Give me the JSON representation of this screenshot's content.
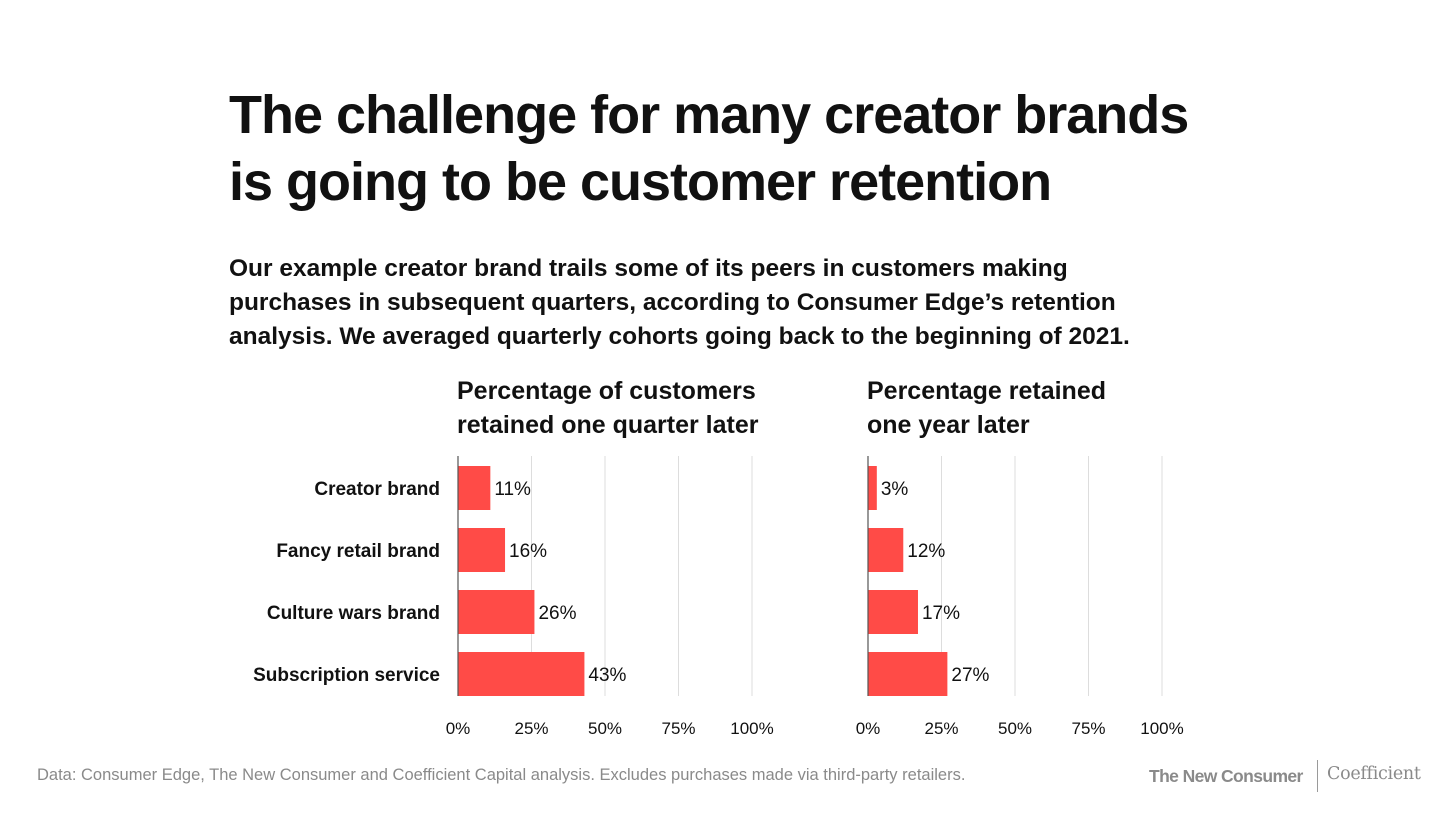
{
  "title_line1": "The challenge for many creator brands",
  "title_line2": "is going to be customer retention",
  "subtitle_line1": "Our example creator brand trails some of its peers in customers making",
  "subtitle_line2": "purchases in subsequent quarters, according to Consumer Edge’s retention",
  "subtitle_line3": "analysis. We averaged quarterly cohorts going back to the beginning of 2021.",
  "source": "Data: Consumer Edge, The New Consumer and Coefficient Capital analysis. Excludes purchases made via third-party retailers.",
  "logos": {
    "tnc": "The New Consumer",
    "coefficient": "Coefficient"
  },
  "colors": {
    "bar": "#ff4b47",
    "grid": "#dddddd",
    "axis": "#555555"
  },
  "chart_data": [
    {
      "type": "bar",
      "orientation": "horizontal",
      "title_line1": "Percentage of customers",
      "title_line2": "retained one quarter later",
      "categories": [
        "Creator brand",
        "Fancy retail brand",
        "Culture wars brand",
        "Subscription service"
      ],
      "values": [
        11,
        16,
        26,
        43
      ],
      "value_labels": [
        "11%",
        "16%",
        "26%",
        "43%"
      ],
      "xlim": [
        0,
        100
      ],
      "x_ticks": [
        0,
        25,
        50,
        75,
        100
      ],
      "x_tick_labels": [
        "0%",
        "25%",
        "50%",
        "75%",
        "100%"
      ],
      "grid": true
    },
    {
      "type": "bar",
      "orientation": "horizontal",
      "title_line1": "Percentage retained",
      "title_line2": "one year later",
      "categories": [
        "Creator brand",
        "Fancy retail brand",
        "Culture wars brand",
        "Subscription service"
      ],
      "values": [
        3,
        12,
        17,
        27
      ],
      "value_labels": [
        "3%",
        "12%",
        "17%",
        "27%"
      ],
      "xlim": [
        0,
        100
      ],
      "x_ticks": [
        0,
        25,
        50,
        75,
        100
      ],
      "x_tick_labels": [
        "0%",
        "25%",
        "50%",
        "75%",
        "100%"
      ],
      "grid": true
    }
  ]
}
